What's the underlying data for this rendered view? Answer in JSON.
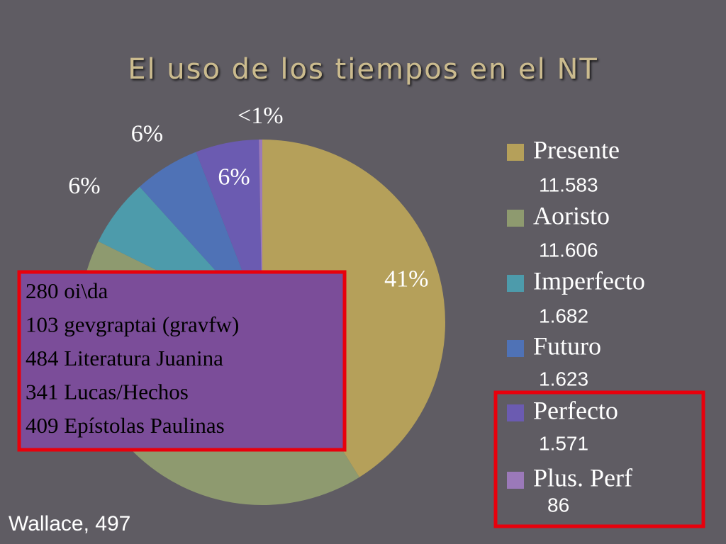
{
  "chart_data": {
    "type": "pie",
    "title": "El uso de los tiempos en el NT",
    "categories": [
      "Presente",
      "Aoristo",
      "Imperfecto",
      "Futuro",
      "Perfecto",
      "Plus. Perf"
    ],
    "values": [
      41.1,
      41.2,
      6.0,
      5.8,
      5.6,
      0.3
    ],
    "value_labels": [
      "41%",
      null,
      "6%",
      "6%",
      "6%",
      "<1%"
    ],
    "legend_counts": [
      "11.583",
      "11.606",
      "1.682",
      "1.623",
      "1.571",
      "86"
    ],
    "colors": [
      "#b5a05a",
      "#8e9a6f",
      "#4d9bab",
      "#4f72b6",
      "#6b5bb1",
      "#9b79b9"
    ],
    "annotations": [
      "280 oi\\da",
      "103 gevgraptai (gravfw)",
      "484 Literatura Juanina",
      "341 Lucas/Hechos",
      "409 Epístolas Paulinas"
    ],
    "source": "Wallace, 497"
  }
}
